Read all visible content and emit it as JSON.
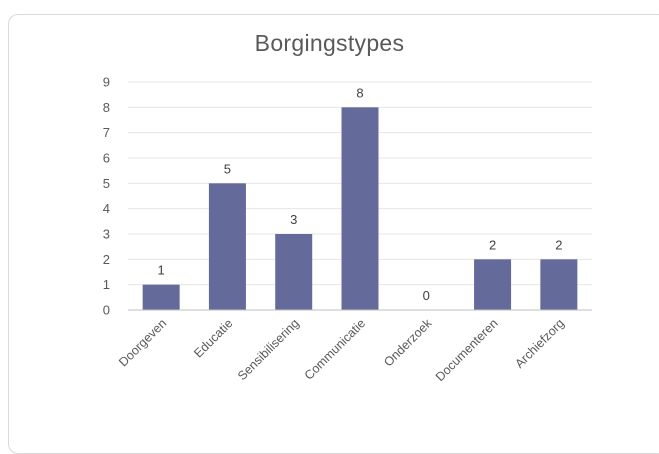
{
  "chart_data": {
    "type": "bar",
    "title": "Borgingstypes",
    "categories": [
      "Doorgeven",
      "Educatie",
      "Sensibilisering",
      "Communicatie",
      "Onderzoek",
      "Documenteren",
      "Archiefzorg"
    ],
    "values": [
      1,
      5,
      3,
      8,
      0,
      2,
      2
    ],
    "ylim": [
      0,
      9
    ],
    "yticks": [
      "0",
      "1",
      "2",
      "3",
      "4",
      "5",
      "6",
      "7",
      "8",
      "9"
    ],
    "xlabel": "",
    "ylabel": "",
    "grid": true,
    "data_labels": true,
    "colors": {
      "bar": "#646a9a",
      "grid": "#e6e6e6",
      "axis": "#bfbfbf"
    }
  }
}
